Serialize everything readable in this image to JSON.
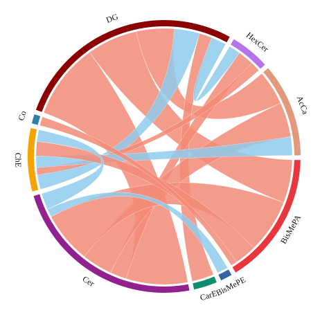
{
  "chart_data": {
    "type": "chord",
    "categories": [
      "DG",
      "HexCer",
      "AcCa",
      "BisMePA",
      "BisMePE",
      "CarE",
      "Cer",
      "ChE",
      "Co"
    ],
    "values": [
      99,
      17,
      40,
      57,
      5,
      10,
      84,
      27,
      4
    ],
    "colors": [
      "#8b0000",
      "#b574ee",
      "#e3977c",
      "#e8363c",
      "#3462a3",
      "#0c8f6d",
      "#92208e",
      "#f5a300",
      "#2d7ea8"
    ],
    "links": [
      {
        "source": "DG",
        "target": "Cer",
        "value": 30,
        "color": "#f28b77"
      },
      {
        "source": "DG",
        "target": "BisMePA",
        "value": 20,
        "color": "#f28b77"
      },
      {
        "source": "DG",
        "target": "AcCa",
        "value": 15,
        "color": "#f28b77"
      },
      {
        "source": "DG",
        "target": "ChE",
        "value": 10,
        "color": "#8ecbec"
      },
      {
        "source": "DG",
        "target": "CarE",
        "value": 5,
        "color": "#f28b77"
      },
      {
        "source": "DG",
        "target": "HexCer",
        "value": 6,
        "color": "#8ecbec"
      },
      {
        "source": "HexCer",
        "target": "Cer",
        "value": 8,
        "color": "#f28b77"
      },
      {
        "source": "HexCer",
        "target": "ChE",
        "value": 5,
        "color": "#f28b77"
      },
      {
        "source": "AcCa",
        "target": "Cer",
        "value": 15,
        "color": "#f28b77"
      },
      {
        "source": "AcCa",
        "target": "ChE",
        "value": 8,
        "color": "#8ecbec"
      },
      {
        "source": "BisMePA",
        "target": "Cer",
        "value": 25,
        "color": "#f28b77"
      },
      {
        "source": "BisMePA",
        "target": "ChE",
        "value": 10,
        "color": "#f28b77"
      },
      {
        "source": "BisMePE",
        "target": "Cer",
        "value": 4,
        "color": "#8ecbec"
      },
      {
        "source": "Co",
        "target": "BisMePA",
        "value": 3,
        "color": "#f28b77"
      },
      {
        "source": "Cer",
        "target": "ChE",
        "value": 8,
        "color": "#8ecbec"
      }
    ]
  }
}
